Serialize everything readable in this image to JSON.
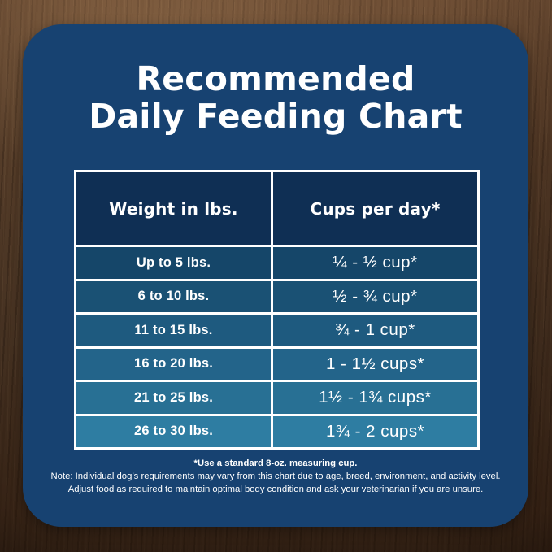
{
  "card": {
    "background": "#174271",
    "title_line1": "Recommended",
    "title_line2": "Daily Feeding Chart"
  },
  "table": {
    "border_color": "#ffffff",
    "header": {
      "background": "#0f2f54",
      "weight_label": "Weight in lbs.",
      "cups_label": "Cups per day*"
    },
    "rows": [
      {
        "weight": "Up to 5 lbs.",
        "cups": "¼ - ½ cup*",
        "color": "#154669"
      },
      {
        "weight": "6 to 10 lbs.",
        "cups": "½ - ¾ cup*",
        "color": "#1a5174"
      },
      {
        "weight": "11 to 15 lbs.",
        "cups": "¾ - 1 cup*",
        "color": "#1e5a7f"
      },
      {
        "weight": "16 to 20 lbs.",
        "cups": "1 - 1½ cups*",
        "color": "#23648a"
      },
      {
        "weight": "21 to 25 lbs.",
        "cups": "1½ - 1¾ cups*",
        "color": "#287094"
      },
      {
        "weight": "26 to 30 lbs.",
        "cups": "1¾ - 2 cups*",
        "color": "#2e7da2"
      }
    ]
  },
  "notes": {
    "measuring_cup": "*Use a standard 8-oz. measuring cup.",
    "line1": "Note: Individual dog’s requirements may vary from this chart due to age, breed, environment, and activity level.",
    "line2": "Adjust food as required to maintain optimal body condition and ask your veterinarian if you are unsure."
  },
  "chart_data": {
    "type": "table",
    "title": "Recommended Daily Feeding Chart",
    "columns": [
      "Weight in lbs.",
      "Cups per day*"
    ],
    "rows": [
      [
        "Up to 5 lbs.",
        "¼ - ½ cup*"
      ],
      [
        "6 to 10 lbs.",
        "½ - ¾ cup*"
      ],
      [
        "11 to 15 lbs.",
        "¾ - 1 cup*"
      ],
      [
        "16 to 20 lbs.",
        "1 - 1½ cups*"
      ],
      [
        "21 to 25 lbs.",
        "1½ - 1¾ cups*"
      ],
      [
        "26 to 30 lbs.",
        "1¾ - 2 cups*"
      ]
    ],
    "footnotes": [
      "*Use a standard 8-oz. measuring cup.",
      "Note: Individual dog’s requirements may vary from this chart due to age, breed, environment, and activity level.",
      "Adjust food as required to maintain optimal body condition and ask your veterinarian if you are unsure."
    ]
  }
}
